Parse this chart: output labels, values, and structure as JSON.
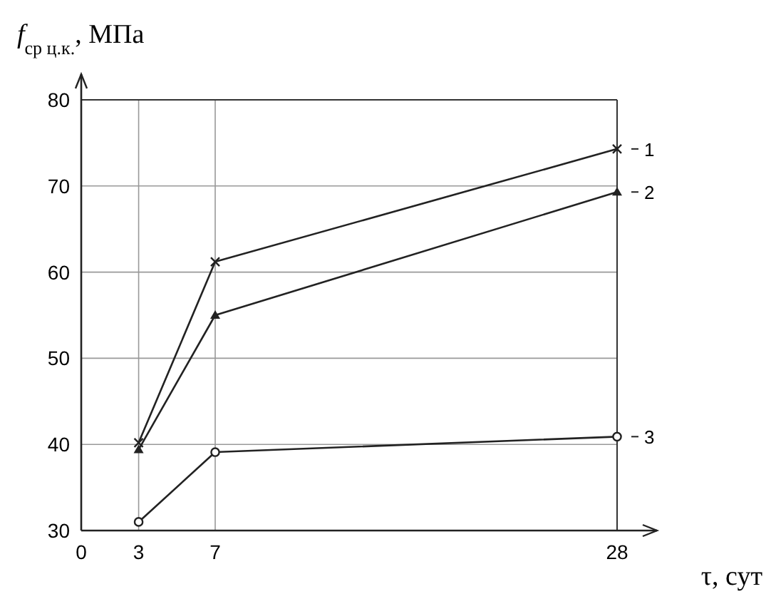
{
  "chart_data": {
    "type": "line",
    "xlabel": "τ, сут",
    "ylabel": "f$_{ср ц.к.}$, МПа",
    "x": [
      3,
      7,
      28
    ],
    "xlim": [
      0,
      28
    ],
    "xticks": [
      0,
      3,
      7,
      28
    ],
    "ylim": [
      30,
      80
    ],
    "yticks": [
      30,
      40,
      50,
      60,
      70,
      80
    ],
    "grid": true,
    "legend": "right",
    "series": [
      {
        "name": "1",
        "color": "#222222",
        "marker": "cross",
        "values": [
          40.2,
          61.2,
          74.3
        ]
      },
      {
        "name": "2",
        "color": "#222222",
        "marker": "triangle",
        "values": [
          39.4,
          55,
          69.3
        ]
      },
      {
        "name": "3",
        "color": "#222222",
        "marker": "circle",
        "values": [
          31,
          39.1,
          40.9
        ]
      }
    ]
  }
}
